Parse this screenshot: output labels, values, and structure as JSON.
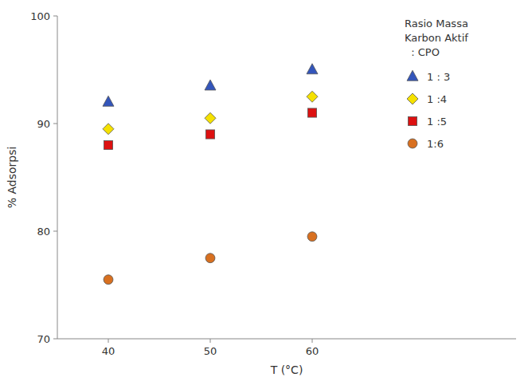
{
  "chart_data": {
    "type": "scatter",
    "x_label": "T (°C)",
    "y_label": "% Adsorpsi",
    "x": [
      40,
      50,
      60
    ],
    "series": [
      {
        "name": "1 : 3",
        "color": "#3355bb",
        "marker": "triangle",
        "values": [
          92.0,
          93.5,
          95.0
        ]
      },
      {
        "name": "1 :4",
        "color": "#f5e100",
        "marker": "diamond",
        "values": [
          89.5,
          90.5,
          92.5
        ]
      },
      {
        "name": "1 :5",
        "color": "#dd1111",
        "marker": "square",
        "values": [
          88.0,
          89.0,
          91.0
        ]
      },
      {
        "name": "1:6",
        "color": "#d87020",
        "marker": "circle",
        "values": [
          75.5,
          77.5,
          79.5
        ]
      }
    ],
    "legend_title": [
      "Rasio Massa",
      "Karbon Aktif",
      "  : CPO"
    ],
    "legend": "right",
    "xlim": [
      35,
      80
    ],
    "ylim": [
      70,
      100
    ],
    "xticks": [
      40,
      50,
      60
    ],
    "yticks": [
      70,
      80,
      90,
      100
    ],
    "grid": false
  }
}
